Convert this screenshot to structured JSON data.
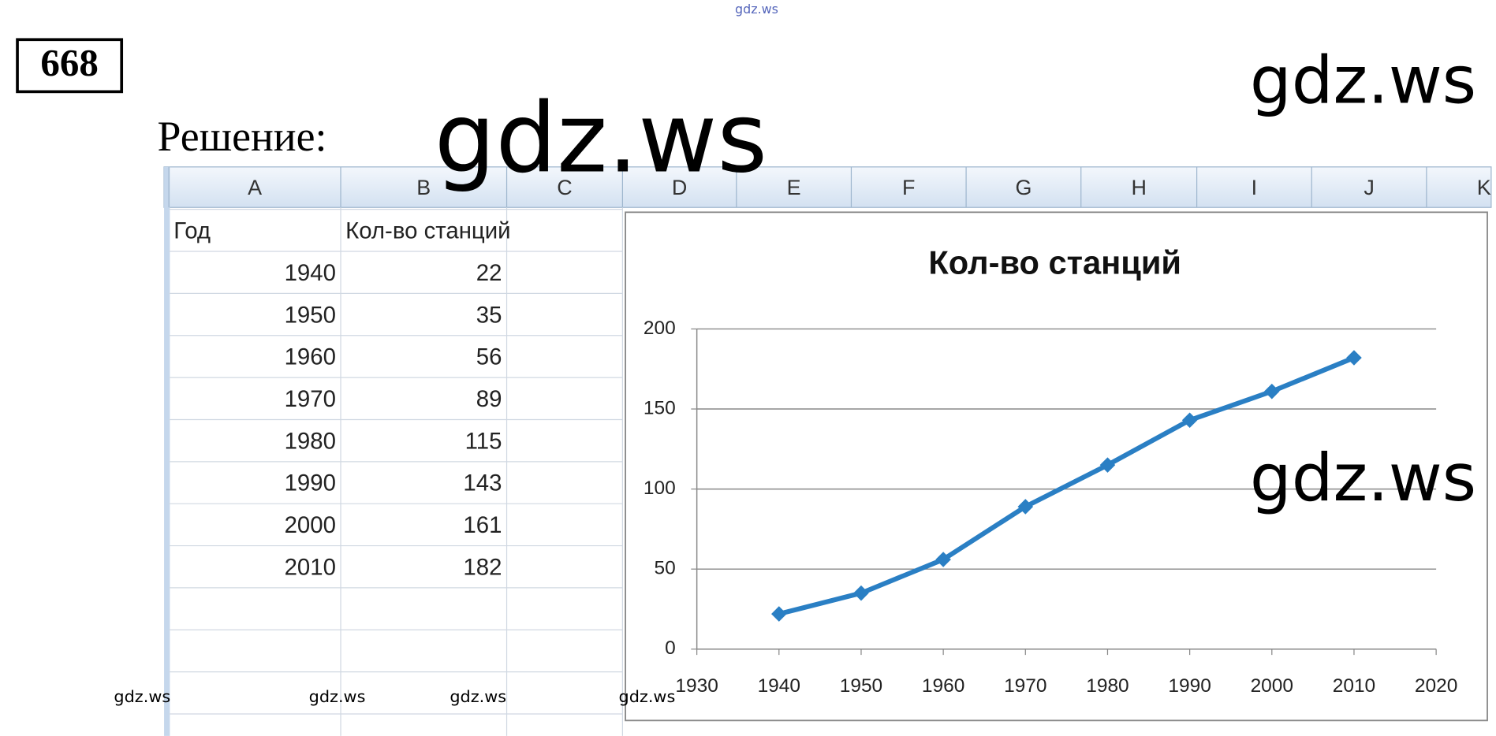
{
  "header": {
    "watermark_top": "gdz.ws",
    "number": "668",
    "solution_label": "Решение:"
  },
  "watermarks": [
    "gdz.ws",
    "gdz.ws",
    "gdz.ws",
    "gdz.ws",
    "gdz.ws",
    "gdz.ws",
    "gdz.ws"
  ],
  "spreadsheet": {
    "columns": [
      "A",
      "B",
      "C",
      "D",
      "E",
      "F",
      "G",
      "H",
      "I",
      "J",
      "K"
    ],
    "table": {
      "header": [
        "Год",
        "Кол-во станций"
      ],
      "rows": [
        [
          "1940",
          "22"
        ],
        [
          "1950",
          "35"
        ],
        [
          "1960",
          "56"
        ],
        [
          "1970",
          "89"
        ],
        [
          "1980",
          "115"
        ],
        [
          "1990",
          "143"
        ],
        [
          "2000",
          "161"
        ],
        [
          "2010",
          "182"
        ]
      ]
    }
  },
  "chart_data": {
    "type": "line",
    "title": "Кол-во станций",
    "x": [
      1940,
      1950,
      1960,
      1970,
      1980,
      1990,
      2000,
      2010
    ],
    "values": [
      22,
      35,
      56,
      89,
      115,
      143,
      161,
      182
    ],
    "color": "#2a7fc4",
    "xlim": [
      1930,
      2020
    ],
    "xticks": [
      1930,
      1940,
      1950,
      1960,
      1970,
      1980,
      1990,
      2000,
      2010,
      2020
    ],
    "ylim": [
      0,
      200
    ],
    "yticks": [
      0,
      50,
      100,
      150,
      200
    ],
    "grid": true
  }
}
